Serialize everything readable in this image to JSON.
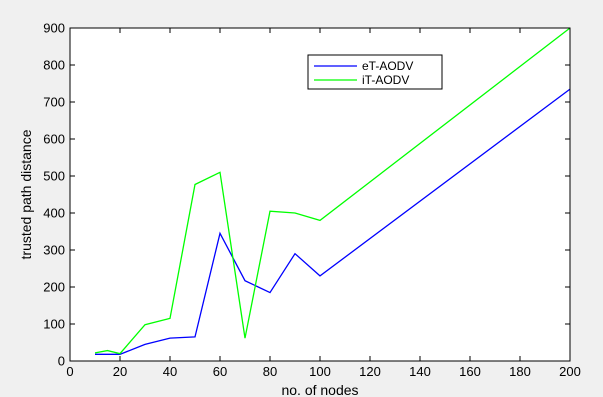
{
  "chart_data": {
    "type": "line",
    "xlabel": "no. of nodes",
    "ylabel": "trusted path distance",
    "xlim": [
      0,
      200
    ],
    "ylim": [
      0,
      900
    ],
    "xticks": [
      0,
      20,
      40,
      60,
      80,
      100,
      120,
      140,
      160,
      180,
      200
    ],
    "yticks": [
      0,
      100,
      200,
      300,
      400,
      500,
      600,
      700,
      800,
      900
    ],
    "grid": false,
    "legend_position": "top-right",
    "series": [
      {
        "name": "eT-AODV",
        "color": "#0000ff",
        "x": [
          10,
          15,
          20,
          30,
          40,
          50,
          60,
          70,
          80,
          90,
          100,
          200
        ],
        "y": [
          18,
          18,
          18,
          45,
          62,
          65,
          345,
          217,
          185,
          290,
          230,
          735
        ]
      },
      {
        "name": "iT-AODV",
        "color": "#00ff00",
        "x": [
          10,
          15,
          20,
          30,
          40,
          50,
          60,
          70,
          80,
          90,
          100,
          200
        ],
        "y": [
          22,
          28,
          20,
          98,
          115,
          477,
          510,
          62,
          405,
          400,
          380,
          900
        ]
      }
    ]
  }
}
